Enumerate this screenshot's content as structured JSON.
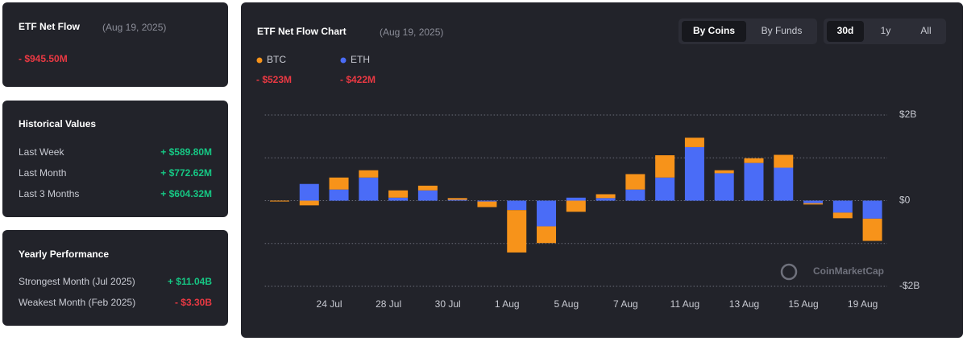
{
  "summary": {
    "title": "ETF Net Flow",
    "date": "(Aug 19, 2025)",
    "value": "- $945.50M",
    "color": "#ea3943"
  },
  "historical": {
    "title": "Historical Values",
    "rows": [
      {
        "label": "Last Week",
        "value": "+ $589.80M",
        "color": "#16c784"
      },
      {
        "label": "Last Month",
        "value": "+ $772.62M",
        "color": "#16c784"
      },
      {
        "label": "Last 3 Months",
        "value": "+ $604.32M",
        "color": "#16c784"
      }
    ]
  },
  "yearly": {
    "title": "Yearly Performance",
    "rows": [
      {
        "label": "Strongest Month (Jul 2025)",
        "value": "+ $11.04B",
        "color": "#16c784"
      },
      {
        "label": "Weakest Month (Feb 2025)",
        "value": "- $3.30B",
        "color": "#ea3943"
      }
    ]
  },
  "controls": {
    "view_tabs": [
      "By Coins",
      "By Funds"
    ],
    "view_active": 0,
    "range_tabs": [
      "30d",
      "1y",
      "All"
    ],
    "range_active": 0
  },
  "watermark": "CoinMarketCap",
  "chart_data": {
    "type": "stacked_bar",
    "title": "ETF Net Flow Chart",
    "subtitle": "(Aug 19, 2025)",
    "categories": [
      null,
      null,
      "24 Jul",
      null,
      "28 Jul",
      null,
      "30 Jul",
      null,
      "1 Aug",
      null,
      "5 Aug",
      null,
      "7 Aug",
      null,
      "11 Aug",
      null,
      "13 Aug",
      null,
      "15 Aug",
      null,
      "19 Aug"
    ],
    "series": [
      {
        "name": "BTC",
        "color": "#f7931a",
        "total_label": "- $523M",
        "total_color": "#ea3943",
        "values": [
          -0.02,
          -0.11,
          0.28,
          0.17,
          0.17,
          0.11,
          0.04,
          -0.13,
          -0.99,
          -0.39,
          -0.26,
          0.09,
          0.36,
          0.52,
          0.22,
          0.07,
          0.11,
          0.3,
          -0.03,
          -0.13,
          -0.52
        ]
      },
      {
        "name": "ETH",
        "color": "#4a6cf7",
        "total_label": "- $422M",
        "total_color": "#ea3943",
        "values": [
          0,
          0.39,
          0.26,
          0.54,
          0.07,
          0.24,
          0.02,
          -0.02,
          -0.22,
          -0.6,
          0.07,
          0.06,
          0.26,
          0.54,
          1.25,
          0.64,
          0.88,
          0.77,
          -0.06,
          -0.28,
          -0.42
        ]
      }
    ],
    "stack_order": [
      1,
      0
    ],
    "ylim": [
      -2,
      2
    ],
    "yticks": [
      {
        "value": 2,
        "label": "$2B"
      },
      {
        "value": 0,
        "label": "$0"
      },
      {
        "value": -2,
        "label": "-$2B"
      }
    ],
    "ygrid": [
      -2,
      -1,
      0,
      1,
      2
    ],
    "grid": true
  }
}
